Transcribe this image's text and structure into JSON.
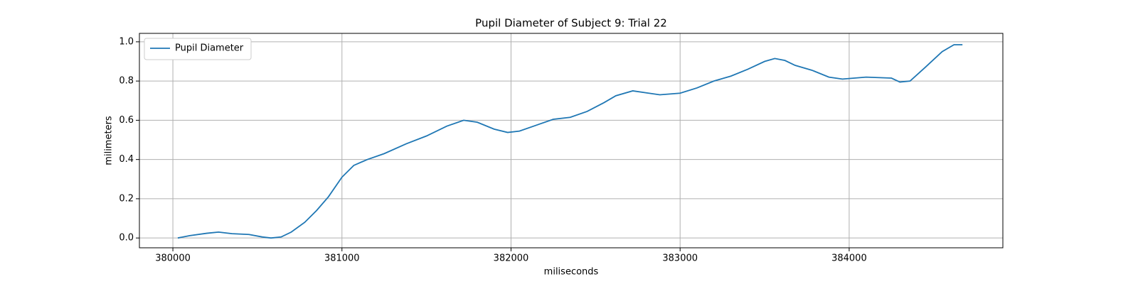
{
  "chart_data": {
    "type": "line",
    "title": "Pupil Diameter of Subject 9: Trial 22",
    "xlabel": "miliseconds",
    "ylabel": "milimeters",
    "x": [
      380029,
      380100,
      380200,
      380270,
      380350,
      380450,
      380530,
      380580,
      380640,
      380700,
      380780,
      380850,
      380920,
      381000,
      381070,
      381150,
      381250,
      381380,
      381500,
      381620,
      381720,
      381800,
      381900,
      381980,
      382050,
      382150,
      382250,
      382350,
      382450,
      382550,
      382620,
      382720,
      382800,
      382880,
      383000,
      383100,
      383200,
      383300,
      383400,
      383500,
      383560,
      383620,
      383680,
      383780,
      383880,
      383960,
      384100,
      384250,
      384300,
      384360,
      384450,
      384550,
      384620,
      384670
    ],
    "series": [
      {
        "name": "Pupil Diameter",
        "color": "#1f77b4",
        "values": [
          0.0,
          0.012,
          0.024,
          0.03,
          0.022,
          0.018,
          0.005,
          0.0,
          0.005,
          0.03,
          0.08,
          0.14,
          0.21,
          0.31,
          0.37,
          0.4,
          0.43,
          0.48,
          0.52,
          0.57,
          0.6,
          0.59,
          0.555,
          0.538,
          0.545,
          0.575,
          0.605,
          0.615,
          0.645,
          0.69,
          0.725,
          0.75,
          0.74,
          0.73,
          0.738,
          0.765,
          0.8,
          0.825,
          0.86,
          0.9,
          0.915,
          0.905,
          0.88,
          0.855,
          0.82,
          0.81,
          0.82,
          0.815,
          0.795,
          0.8,
          0.87,
          0.95,
          0.985,
          0.985
        ]
      }
    ],
    "xlim": [
      379802,
      384909
    ],
    "ylim": [
      -0.05,
      1.043
    ],
    "xticks": [
      380000,
      381000,
      382000,
      383000,
      384000
    ],
    "yticks": [
      {
        "value": 0,
        "label": "0.0"
      },
      0.2,
      0.4,
      0.6,
      0.8,
      {
        "value": 1,
        "label": "1.0"
      }
    ],
    "grid": true,
    "legend": "upper left"
  }
}
